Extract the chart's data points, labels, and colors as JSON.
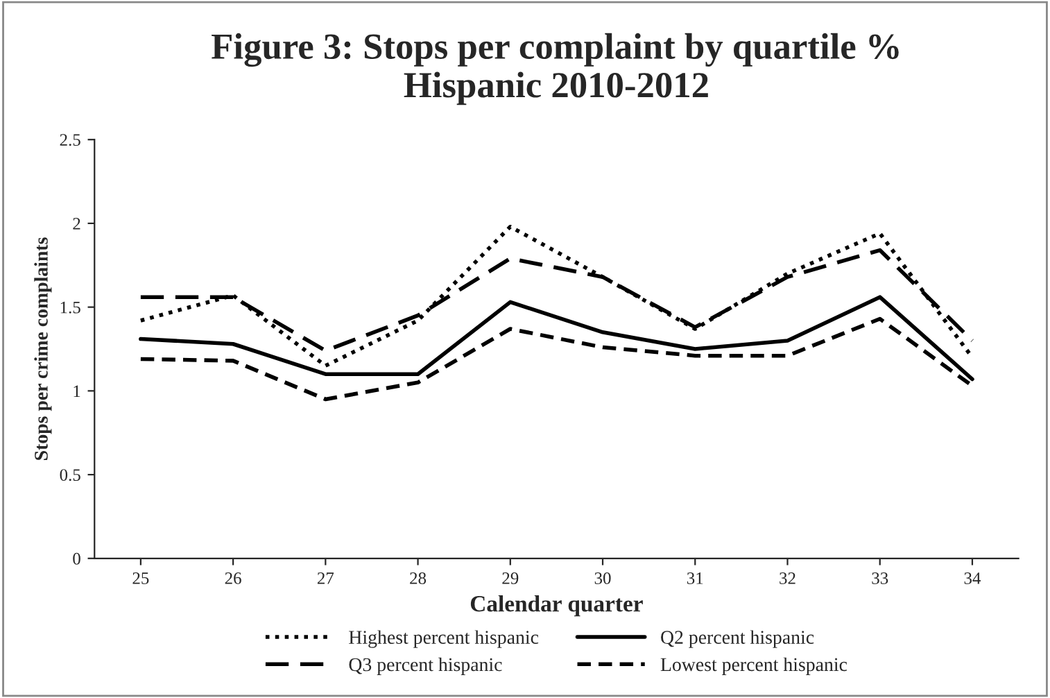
{
  "chart_data": {
    "type": "line",
    "title": "Figure 3: Stops per complaint by quartile %\nHispanic 2010-2012",
    "xlabel": "Calendar quarter",
    "ylabel": "Stops per crime complaints",
    "categories": [
      "25",
      "26",
      "27",
      "28",
      "29",
      "30",
      "31",
      "32",
      "33",
      "34"
    ],
    "ylim": [
      0,
      2.5
    ],
    "yticks": [
      0,
      0.5,
      1,
      1.5,
      2,
      2.5
    ],
    "grid": false,
    "legend": "bottom",
    "marker": "none",
    "series": [
      {
        "name": "Highest percent hispanic",
        "color": "#000000",
        "line_style": "dotted",
        "values": [
          1.42,
          1.57,
          1.15,
          1.42,
          1.98,
          1.68,
          1.37,
          1.7,
          1.94,
          1.2
        ]
      },
      {
        "name": "Q3 percent hispanic",
        "color": "#000000",
        "line_style": "dashed",
        "values": [
          1.56,
          1.56,
          1.24,
          1.45,
          1.79,
          1.68,
          1.38,
          1.68,
          1.84,
          1.3
        ]
      },
      {
        "name": "Q2 percent hispanic",
        "color": "#000000",
        "line_style": "solid",
        "values": [
          1.31,
          1.28,
          1.1,
          1.1,
          1.53,
          1.35,
          1.25,
          1.3,
          1.56,
          1.07
        ]
      },
      {
        "name": "Lowest percent hispanic",
        "color": "#000000",
        "line_style": "dashed",
        "values": [
          1.19,
          1.18,
          0.95,
          1.05,
          1.37,
          1.26,
          1.21,
          1.21,
          1.43,
          1.03
        ]
      }
    ]
  }
}
